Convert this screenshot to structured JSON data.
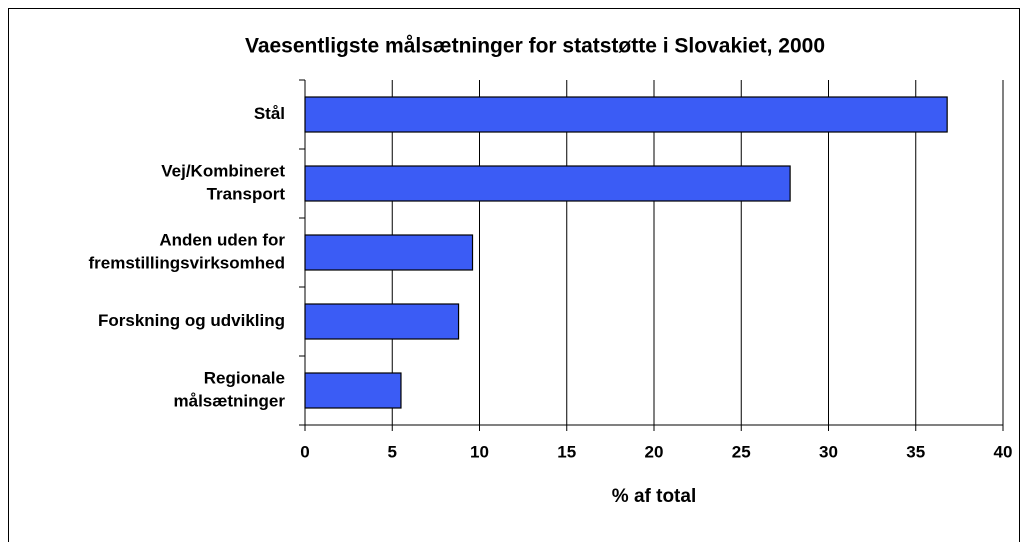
{
  "chart_data": {
    "type": "hbar",
    "title": "Vaesentligste målsætninger for statstøtte i Slovakiet, 2000",
    "categories": [
      [
        "Stål"
      ],
      [
        "Vej/Kombineret",
        "Transport"
      ],
      [
        "Anden uden for",
        "fremstillingsvirksomhed"
      ],
      [
        "Forskning og udvikling"
      ],
      [
        "Regionale",
        "målsætninger"
      ]
    ],
    "values": [
      36.8,
      27.8,
      9.6,
      8.8,
      5.5
    ],
    "color": "#3b5cf5",
    "xlabel": "% af total",
    "xlim": [
      0,
      40
    ],
    "xticks": [
      0,
      5,
      10,
      15,
      20,
      25,
      30,
      35,
      40
    ],
    "grid": true
  }
}
